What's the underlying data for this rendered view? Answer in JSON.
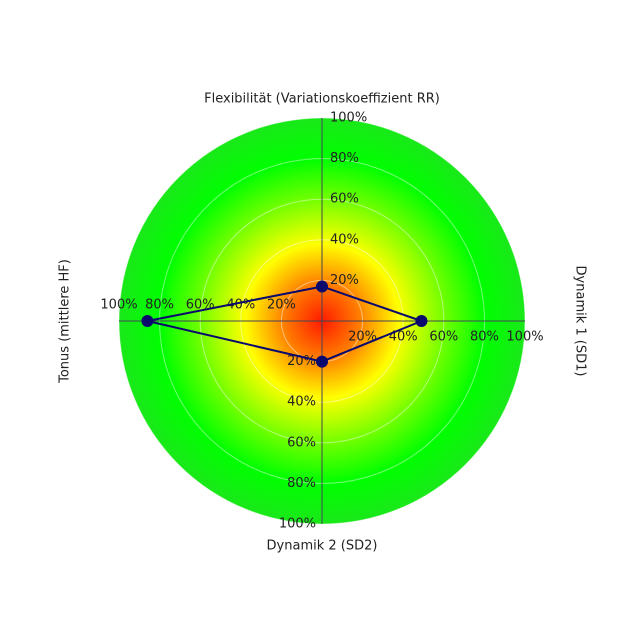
{
  "chart_data": {
    "type": "radar",
    "categories": [
      "Flexibilität (Variationskoeffizient RR)",
      "Dynamik 1 (SD1)",
      "Dynamik 2 (SD2)",
      "Tonus (mittlere HF)"
    ],
    "series": [
      {
        "color": "#0a0a6e",
        "values": [
          17,
          49,
          20,
          86
        ]
      }
    ],
    "ylim": [
      0,
      100
    ],
    "yticks": [
      {
        "value": 20,
        "label": "20%"
      },
      {
        "value": 40,
        "label": "40%"
      },
      {
        "value": 60,
        "label": "60%"
      },
      {
        "value": 80,
        "label": "80%"
      },
      {
        "value": 100,
        "label": "100%"
      }
    ],
    "grid": true
  }
}
